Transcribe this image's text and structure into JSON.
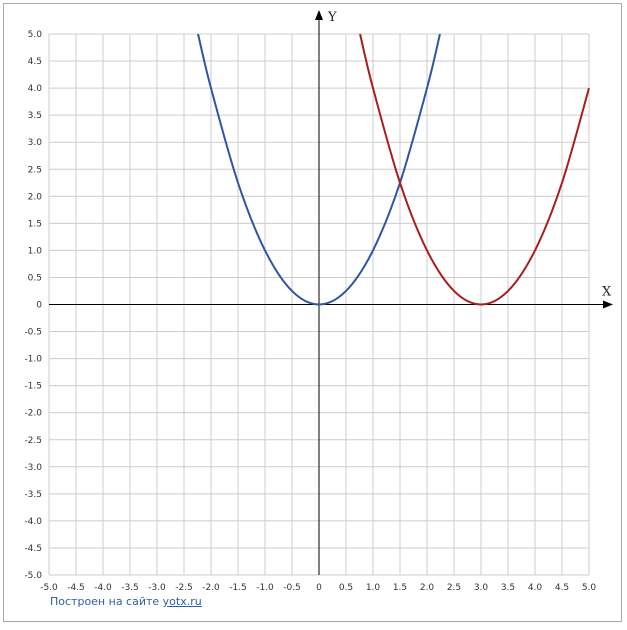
{
  "chart_data": {
    "type": "line",
    "xlabel": "X",
    "ylabel": "Y",
    "xlim": [
      -5.0,
      5.0
    ],
    "ylim": [
      -5.0,
      5.0
    ],
    "tick_step": 0.5,
    "x_ticks": [
      "-5.0",
      "-4.5",
      "-4.0",
      "-3.5",
      "-3.0",
      "-2.5",
      "-2.0",
      "-1.5",
      "-1.0",
      "-0.5",
      "0",
      "0.5",
      "1.0",
      "1.5",
      "2.0",
      "2.5",
      "3.0",
      "3.5",
      "4.0",
      "4.5",
      "5.0"
    ],
    "y_ticks": [
      "5.0",
      "4.5",
      "4.0",
      "3.5",
      "3.0",
      "2.5",
      "2.0",
      "1.5",
      "1.0",
      "0.5",
      "0",
      "-0.5",
      "-1.0",
      "-1.5",
      "-2.0",
      "-2.5",
      "-3.0",
      "-3.5",
      "-4.0",
      "-4.5",
      "-5.0"
    ],
    "grid": true,
    "series": [
      {
        "color": "#2f55a4",
        "x": [
          -2.24,
          -2.0,
          -1.5,
          -1.0,
          -0.5,
          0,
          0.5,
          1.0,
          1.5,
          2.0,
          2.24
        ],
        "y": [
          5.0,
          4.0,
          2.25,
          1.0,
          0.25,
          0,
          0.25,
          1.0,
          2.25,
          4.0,
          5.0
        ]
      },
      {
        "color": "#a81e1e",
        "x": [
          0.76,
          1.0,
          1.5,
          2.0,
          2.5,
          3.0,
          3.5,
          4.0,
          4.5,
          5.0
        ],
        "y": [
          5.0,
          4.0,
          2.25,
          1.0,
          0.25,
          0,
          0.25,
          1.0,
          2.25,
          4.0
        ]
      }
    ]
  },
  "credit": {
    "text": "Построен на сайте ",
    "link": "yotx.ru"
  },
  "colors": {
    "grid": "#cccccc",
    "axis": "#000000"
  }
}
